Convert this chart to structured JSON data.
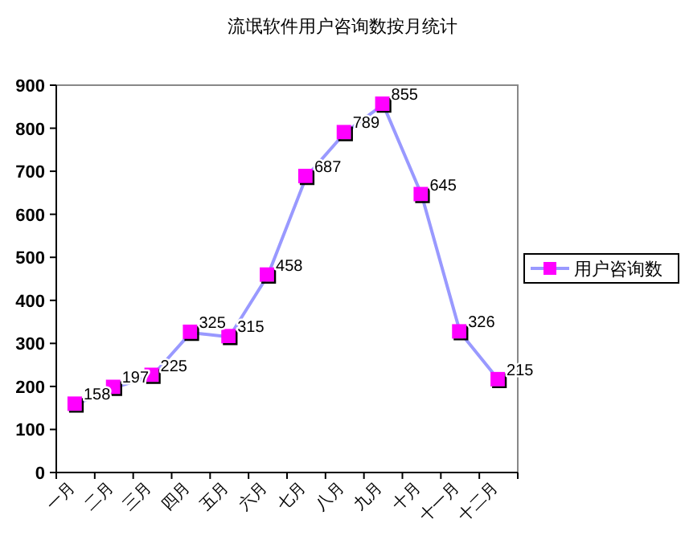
{
  "chart_data": {
    "type": "line",
    "title": "流氓软件用户咨询数按月统计",
    "categories": [
      "一月",
      "二月",
      "三月",
      "四月",
      "五月",
      "六月",
      "七月",
      "八月",
      "九月",
      "十月",
      "十一月",
      "十二月"
    ],
    "series": [
      {
        "name": "用户咨询数",
        "color": "#9999ff",
        "colors": [
          "#ff00ff",
          "#ff00ff",
          "#ff00ff",
          "#ff00ff",
          "#ff00ff",
          "#ff00ff",
          "#ff00ff",
          "#ff00ff",
          "#ff00ff",
          "#ff00ff",
          "#ff00ff",
          "#ff00ff"
        ],
        "values": [
          158,
          197,
          225,
          325,
          315,
          458,
          687,
          789,
          855,
          645,
          326,
          215
        ]
      }
    ],
    "ylim": [
      0,
      900
    ],
    "yticks": [
      0,
      100,
      200,
      300,
      400,
      500,
      600,
      700,
      800,
      900
    ],
    "marker": "square",
    "data_labels": true,
    "legend": "right",
    "grid": false
  }
}
